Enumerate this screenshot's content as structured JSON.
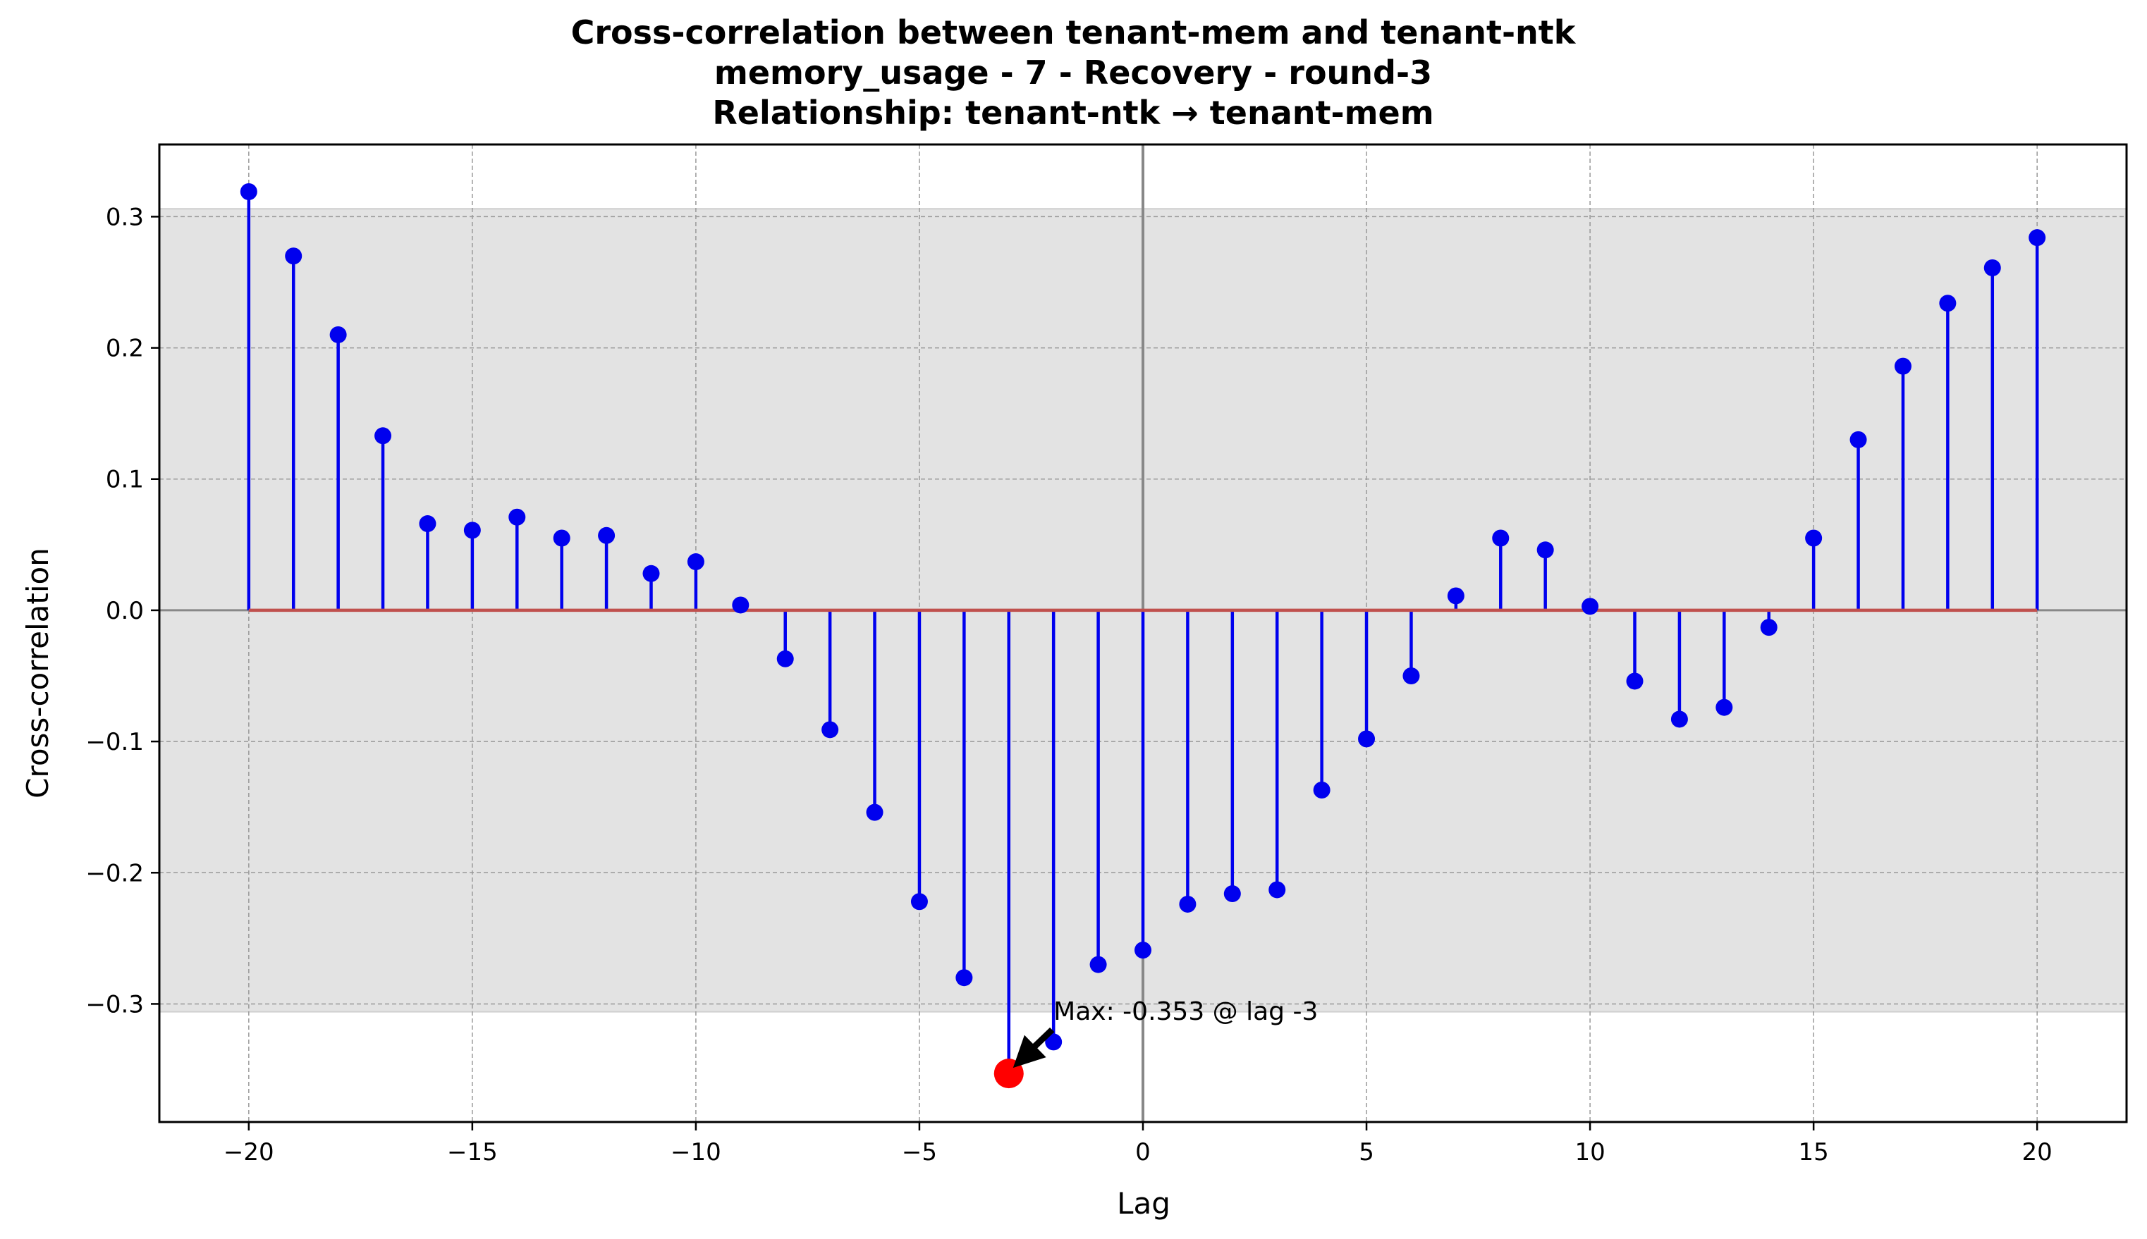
{
  "chart_data": {
    "type": "stem",
    "title": [
      "Cross-correlation between tenant-mem and tenant-ntk",
      "memory_usage - 7 - Recovery - round-3",
      "Relationship: tenant-ntk → tenant-mem"
    ],
    "xlabel": "Lag",
    "ylabel": "Cross-correlation",
    "xlim": [
      -22,
      22
    ],
    "ylim": [
      -0.39,
      0.355
    ],
    "xticks": [
      -20,
      -15,
      -10,
      -5,
      0,
      5,
      10,
      15,
      20
    ],
    "xtick_labels": [
      "−20",
      "−15",
      "−10",
      "−5",
      "0",
      "5",
      "10",
      "15",
      "20"
    ],
    "yticks": [
      0.3,
      0.2,
      0.1,
      0.0,
      -0.1,
      -0.2,
      -0.3
    ],
    "ytick_labels": [
      "0.3",
      "0.2",
      "0.1",
      "0.0",
      "−0.1",
      "−0.2",
      "−0.3"
    ],
    "grid": true,
    "confidence_band": [
      -0.306,
      0.306
    ],
    "lags": [
      -20,
      -19,
      -18,
      -17,
      -16,
      -15,
      -14,
      -13,
      -12,
      -11,
      -10,
      -9,
      -8,
      -7,
      -6,
      -5,
      -4,
      -3,
      -2,
      -1,
      0,
      1,
      2,
      3,
      4,
      5,
      6,
      7,
      8,
      9,
      10,
      11,
      12,
      13,
      14,
      15,
      16,
      17,
      18,
      19,
      20
    ],
    "values": [
      0.319,
      0.27,
      0.21,
      0.133,
      0.066,
      0.061,
      0.071,
      0.055,
      0.057,
      0.028,
      0.037,
      0.004,
      -0.037,
      -0.091,
      -0.154,
      -0.222,
      -0.28,
      -0.353,
      -0.329,
      -0.27,
      -0.259,
      -0.224,
      -0.216,
      -0.213,
      -0.137,
      -0.098,
      -0.05,
      0.011,
      0.055,
      0.046,
      0.003,
      -0.054,
      -0.083,
      -0.074,
      -0.013,
      0.055,
      0.13,
      0.186,
      0.234,
      0.261,
      0.284
    ],
    "max_point": {
      "lag": -3,
      "value": -0.353
    },
    "annotation": "Max: -0.353 @ lag -3",
    "colors": {
      "stem": "#0000ee",
      "marker": "#0000ee",
      "baseline": "#c0504d",
      "max_marker": "#ff0000",
      "band": "#e3e3e3",
      "grid": "#999999",
      "zero_line": "#888888"
    }
  }
}
